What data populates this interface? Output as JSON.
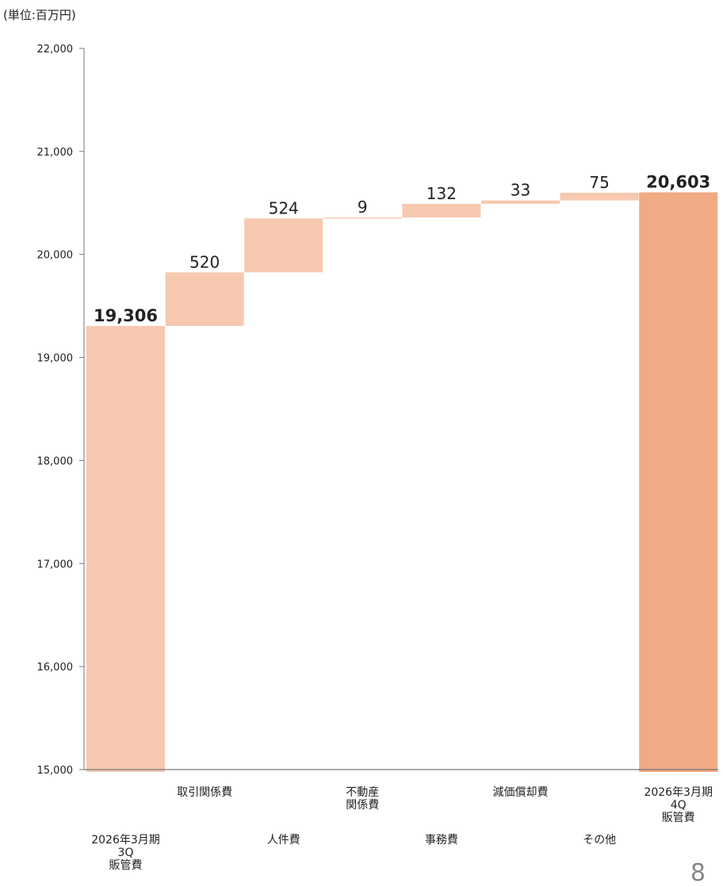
{
  "unit_label": "(単位:百万円)",
  "page_number": "8",
  "colors": {
    "step": "#f6c9b0",
    "total_end": "#f0aa85",
    "axis": "#777777",
    "text": "#222222"
  },
  "chart_data": {
    "type": "waterfall",
    "title": "",
    "xlabel": "",
    "ylabel": "",
    "ylim": [
      15000,
      22000
    ],
    "y_ticks": [
      15000,
      16000,
      17000,
      18000,
      19000,
      20000,
      21000,
      22000
    ],
    "y_tick_labels": [
      "15,000",
      "16,000",
      "17,000",
      "18,000",
      "19,000",
      "20,000",
      "21,000",
      "22,000"
    ],
    "categories": [
      "2026年3月期\n3Q\n販管費",
      "取引関係費",
      "人件費",
      "不動産\n関係費",
      "事務費",
      "減価償却費",
      "その他",
      "2026年3月期\n4Q\n販管費"
    ],
    "kinds": [
      "total",
      "delta",
      "delta",
      "delta",
      "delta",
      "delta",
      "delta",
      "total"
    ],
    "values": [
      19306,
      520,
      524,
      9,
      132,
      33,
      75,
      20603
    ],
    "data_labels": [
      "19,306",
      "520",
      "524",
      "9",
      "132",
      "33",
      "75",
      "20,603"
    ],
    "grid": false,
    "legend": "none"
  }
}
